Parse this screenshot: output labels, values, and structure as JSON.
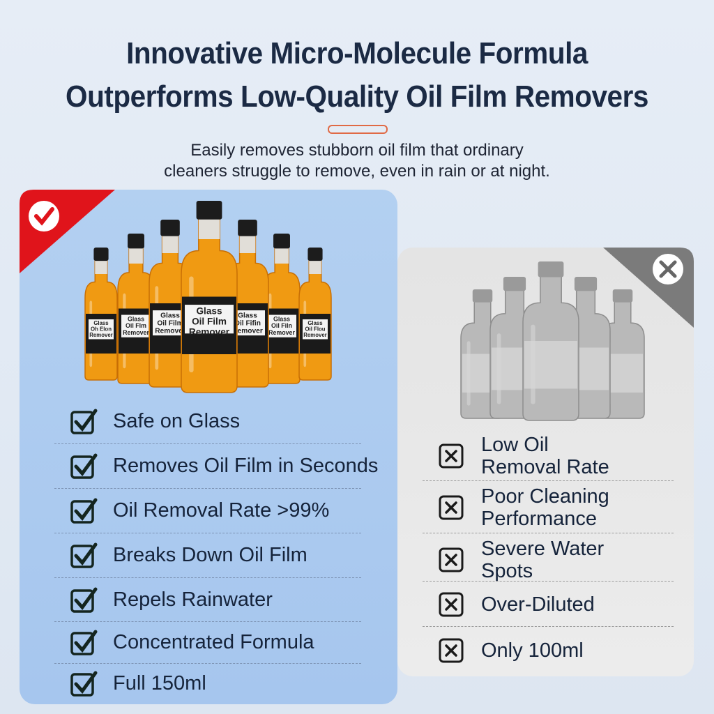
{
  "header": {
    "title_lines": [
      "Innovative Micro-Molecule Formula",
      "Outperforms Low-Quality Oil Film Removers"
    ],
    "subtitle_lines": [
      "Easily removes stubborn oil film that ordinary",
      "cleaners struggle to remove, even in rain or at night."
    ]
  },
  "good_product": {
    "bottle_labels": [
      [
        "Glass",
        "Oh Elon",
        "Remover"
      ],
      [
        "Glass",
        "Oil Flm",
        "Remover"
      ],
      [
        "Glass",
        "Oil Film",
        "Remover"
      ],
      [
        "Glass",
        "Oil Film",
        "Remover"
      ],
      [
        "Glass",
        "Oil Fifin",
        "Remover"
      ],
      [
        "Glass",
        "Oil Filn",
        "Remover"
      ],
      [
        "Glass",
        "Oil Flou",
        "Remover"
      ]
    ],
    "points": [
      "Safe on Glass",
      "Removes Oil Film in Seconds",
      "Oil Removal Rate >99%",
      "Breaks Down Oil Film",
      "Repels Rainwater",
      "Concentrated Formula",
      "Full 150ml"
    ]
  },
  "bad_product": {
    "points": [
      "Low Oil Removal Rate",
      "Poor Cleaning Performance",
      "Severe Water Spots",
      "Over-Diluted",
      "Only 100ml"
    ]
  }
}
